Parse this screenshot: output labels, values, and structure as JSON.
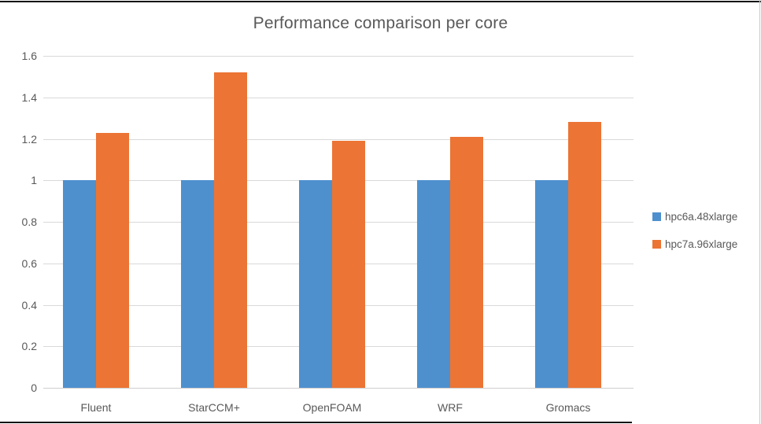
{
  "window": {
    "border_top_color": "#141414",
    "border_bottom_color": "#141414",
    "edge_right_color": "#c9c9c9"
  },
  "chart_data": {
    "type": "bar",
    "title": "Performance comparison per core",
    "categories": [
      "Fluent",
      "StarCCM+",
      "OpenFOAM",
      "WRF",
      "Gromacs"
    ],
    "series": [
      {
        "name": "hpc6a.48xlarge",
        "color": "#4E90CE",
        "values": [
          1.0,
          1.0,
          1.0,
          1.0,
          1.0
        ]
      },
      {
        "name": "hpc7a.96xlarge",
        "color": "#EC7434",
        "values": [
          1.23,
          1.52,
          1.19,
          1.21,
          1.28
        ]
      }
    ],
    "xlabel": "",
    "ylabel": "",
    "ylim": [
      0,
      1.6
    ],
    "yticks": [
      "0",
      "0.2",
      "0.4",
      "0.6",
      "0.8",
      "1",
      "1.2",
      "1.4",
      "1.6"
    ],
    "grid": "horizontal",
    "legend_position": "right",
    "text_color": "#595959",
    "gridline_color": "#d9d9d9",
    "axis_line_color": "#d0cece"
  }
}
